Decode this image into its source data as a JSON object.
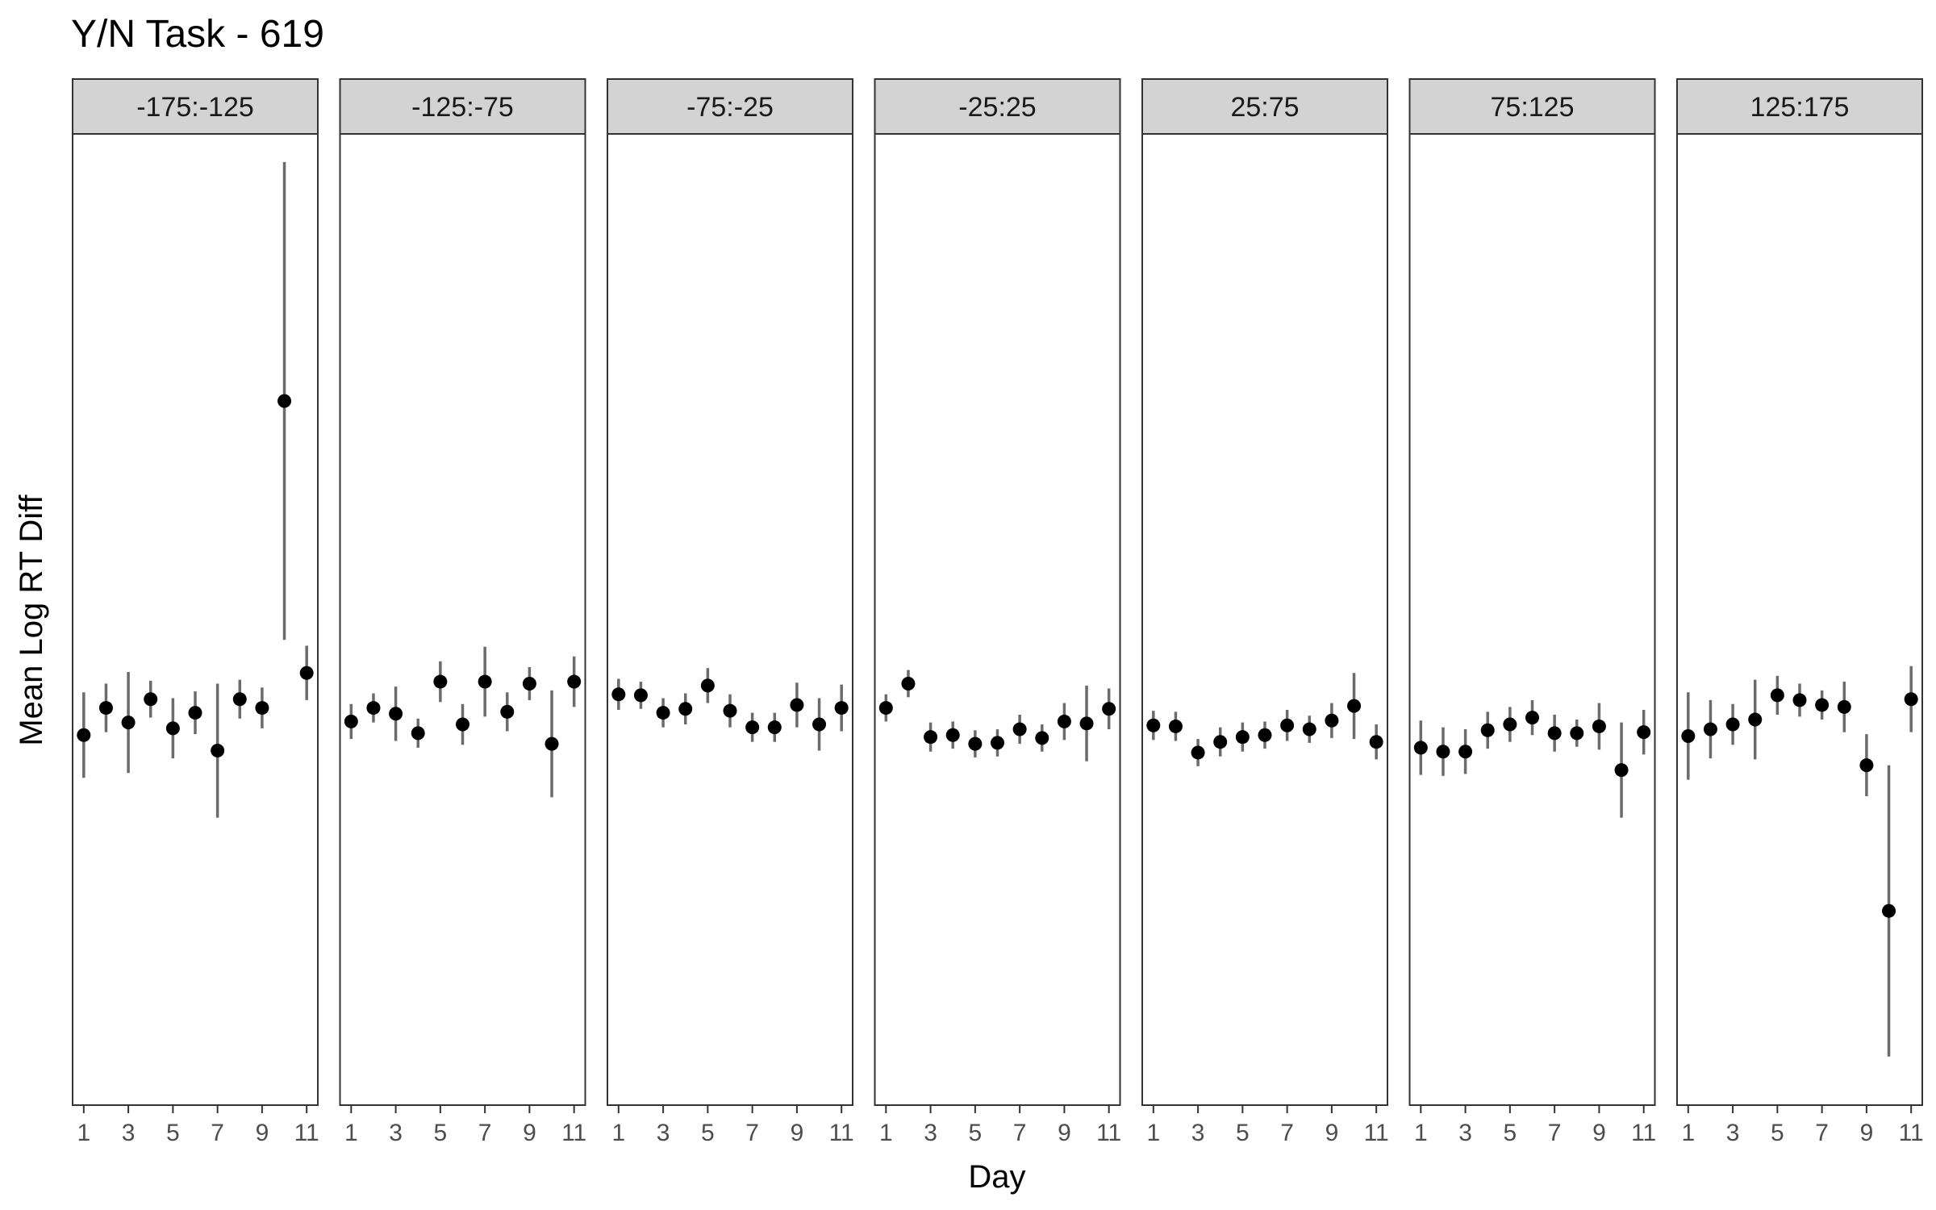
{
  "chart_data": {
    "type": "scatter",
    "title": "Y/N Task - 619",
    "xlabel": "Day",
    "ylabel": "Mean Log RT Diff",
    "x_ticks": [
      1,
      3,
      5,
      7,
      9,
      11
    ],
    "xlim": [
      0.5,
      11.5
    ],
    "ylim": [
      0,
      1
    ],
    "y_tick_labels_shown": false,
    "error_bars": true,
    "colors": {
      "point": "#000000",
      "error_bar": "#6b6b6b",
      "strip_fill": "#d3d3d3",
      "panel_border": "#333333"
    },
    "facets": [
      {
        "label": "-175:-125",
        "x": [
          1,
          2,
          3,
          4,
          5,
          6,
          7,
          8,
          9,
          10,
          11
        ],
        "y": [
          0.381,
          0.409,
          0.394,
          0.418,
          0.388,
          0.404,
          0.365,
          0.418,
          0.409,
          0.725,
          0.445
        ],
        "ymin": [
          0.337,
          0.384,
          0.342,
          0.399,
          0.357,
          0.382,
          0.296,
          0.398,
          0.388,
          0.479,
          0.417
        ],
        "ymax": [
          0.425,
          0.434,
          0.446,
          0.437,
          0.419,
          0.426,
          0.434,
          0.438,
          0.43,
          0.971,
          0.473
        ]
      },
      {
        "label": "-125:-75",
        "x": [
          1,
          2,
          3,
          4,
          5,
          6,
          7,
          8,
          9,
          10,
          11
        ],
        "y": [
          0.395,
          0.409,
          0.403,
          0.383,
          0.436,
          0.392,
          0.436,
          0.405,
          0.434,
          0.372,
          0.436
        ],
        "ymin": [
          0.377,
          0.394,
          0.375,
          0.368,
          0.415,
          0.371,
          0.4,
          0.385,
          0.417,
          0.317,
          0.41
        ],
        "ymax": [
          0.413,
          0.424,
          0.431,
          0.398,
          0.457,
          0.413,
          0.472,
          0.425,
          0.451,
          0.427,
          0.462
        ]
      },
      {
        "label": "-75:-25",
        "x": [
          1,
          2,
          3,
          4,
          5,
          6,
          7,
          8,
          9,
          10,
          11
        ],
        "y": [
          0.423,
          0.422,
          0.404,
          0.408,
          0.432,
          0.406,
          0.389,
          0.389,
          0.412,
          0.392,
          0.409
        ],
        "ymin": [
          0.407,
          0.408,
          0.389,
          0.392,
          0.414,
          0.389,
          0.374,
          0.374,
          0.389,
          0.365,
          0.385
        ],
        "ymax": [
          0.439,
          0.436,
          0.419,
          0.424,
          0.45,
          0.423,
          0.404,
          0.404,
          0.435,
          0.419,
          0.433
        ]
      },
      {
        "label": "-25:25",
        "x": [
          1,
          2,
          3,
          4,
          5,
          6,
          7,
          8,
          9,
          10,
          11
        ],
        "y": [
          0.409,
          0.434,
          0.379,
          0.381,
          0.372,
          0.373,
          0.387,
          0.378,
          0.395,
          0.393,
          0.408
        ],
        "ymin": [
          0.395,
          0.42,
          0.364,
          0.367,
          0.358,
          0.359,
          0.372,
          0.364,
          0.376,
          0.354,
          0.387
        ],
        "ymax": [
          0.423,
          0.448,
          0.394,
          0.395,
          0.386,
          0.387,
          0.402,
          0.392,
          0.414,
          0.432,
          0.429
        ]
      },
      {
        "label": "25:75",
        "x": [
          1,
          2,
          3,
          4,
          5,
          6,
          7,
          8,
          9,
          10,
          11
        ],
        "y": [
          0.391,
          0.39,
          0.363,
          0.374,
          0.379,
          0.381,
          0.391,
          0.387,
          0.396,
          0.411,
          0.374
        ],
        "ymin": [
          0.376,
          0.375,
          0.349,
          0.359,
          0.364,
          0.367,
          0.375,
          0.373,
          0.378,
          0.377,
          0.356
        ],
        "ymax": [
          0.406,
          0.405,
          0.377,
          0.389,
          0.394,
          0.395,
          0.407,
          0.401,
          0.414,
          0.445,
          0.392
        ]
      },
      {
        "label": "75:125",
        "x": [
          1,
          2,
          3,
          4,
          5,
          6,
          7,
          8,
          9,
          10,
          11
        ],
        "y": [
          0.368,
          0.364,
          0.364,
          0.386,
          0.392,
          0.399,
          0.383,
          0.383,
          0.39,
          0.345,
          0.384
        ],
        "ymin": [
          0.34,
          0.339,
          0.341,
          0.367,
          0.374,
          0.381,
          0.364,
          0.369,
          0.366,
          0.296,
          0.361
        ],
        "ymax": [
          0.396,
          0.389,
          0.387,
          0.405,
          0.41,
          0.417,
          0.402,
          0.397,
          0.414,
          0.394,
          0.407
        ]
      },
      {
        "label": "125:175",
        "x": [
          1,
          2,
          3,
          4,
          5,
          6,
          7,
          8,
          9,
          10,
          11
        ],
        "y": [
          0.38,
          0.387,
          0.392,
          0.397,
          0.422,
          0.417,
          0.412,
          0.41,
          0.35,
          0.2,
          0.418
        ],
        "ymin": [
          0.335,
          0.357,
          0.371,
          0.356,
          0.402,
          0.4,
          0.397,
          0.384,
          0.318,
          0.05,
          0.384
        ],
        "ymax": [
          0.425,
          0.417,
          0.413,
          0.438,
          0.442,
          0.434,
          0.427,
          0.436,
          0.382,
          0.35,
          0.452
        ]
      }
    ]
  }
}
